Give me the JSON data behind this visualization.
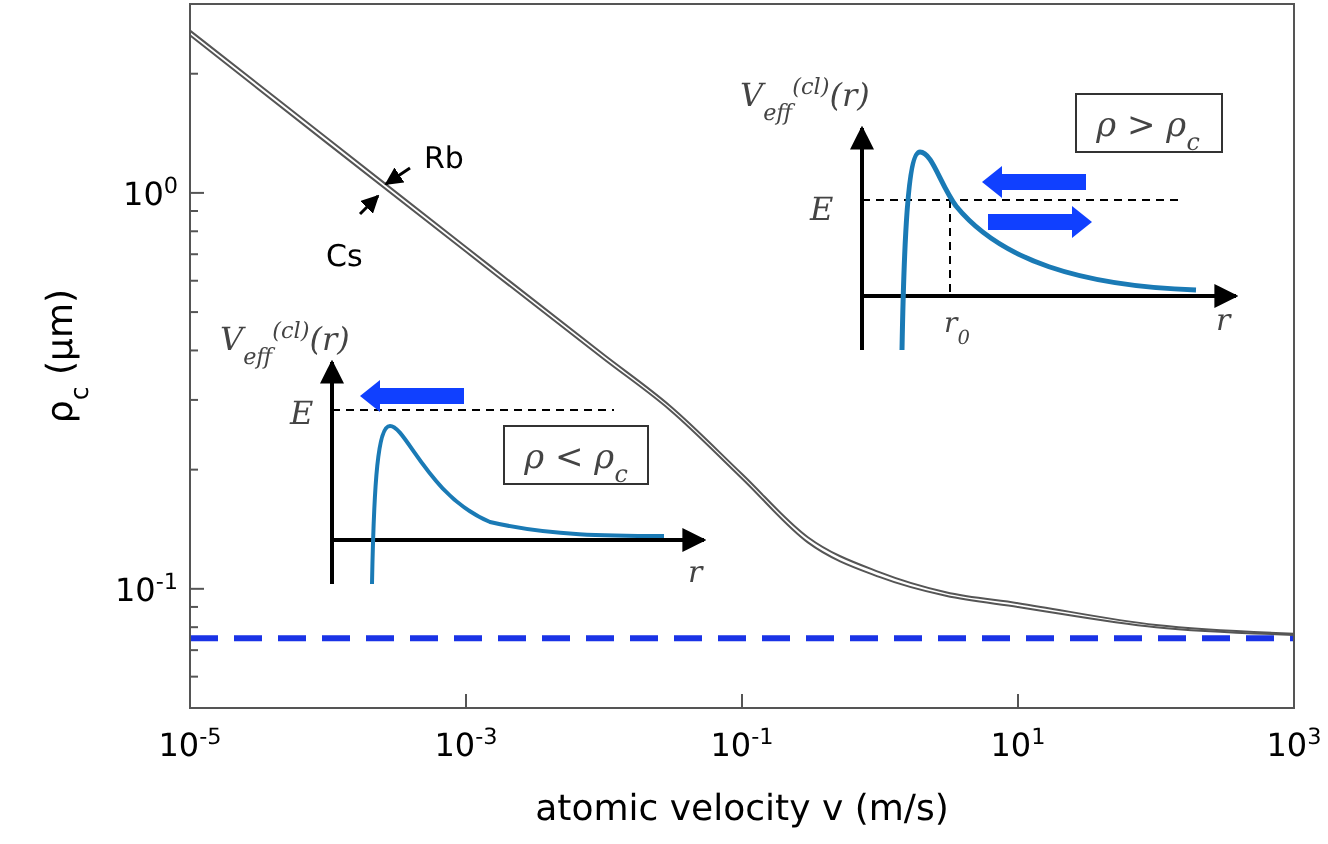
{
  "chart_data": {
    "type": "line",
    "xlabel": "atomic velocity v (m/s)",
    "ylabel": "ρ$_{c}$ (μm)",
    "x": [
      1e-05,
      0.0001,
      0.001,
      0.01,
      0.03,
      0.1,
      0.3,
      1,
      3,
      10,
      100,
      1000
    ],
    "series": [
      {
        "name": "Rb",
        "color": "#555555",
        "values": [
          2.57,
          1.37,
          0.73,
          0.39,
          0.29,
          0.195,
          0.135,
          0.11,
          0.098,
          0.092,
          0.081,
          0.077
        ]
      },
      {
        "name": "Cs",
        "color": "#555555",
        "values": [
          2.5,
          1.33,
          0.71,
          0.38,
          0.283,
          0.19,
          0.131,
          0.107,
          0.096,
          0.09,
          0.08,
          0.0765
        ]
      }
    ],
    "log": "xy",
    "xlim": [
      1e-05,
      1000
    ],
    "ylim": [
      0.05,
      3
    ],
    "xticks": [
      {
        "value": 1e-05,
        "label": "10$^{-5}$"
      },
      {
        "value": 0.001,
        "label": "10$^{-3}$"
      },
      {
        "value": 0.1,
        "label": "10$^{-1}$"
      },
      {
        "value": 10,
        "label": "10$^{1}$"
      },
      {
        "value": 1000,
        "label": "10$^{3}$"
      }
    ],
    "yticks": [
      {
        "value": 0.06,
        "label": null
      },
      {
        "value": 0.07,
        "label": null
      },
      {
        "value": 0.08,
        "label": null
      },
      {
        "value": 0.09,
        "label": null
      },
      {
        "value": 0.1,
        "label": "10$^{-1}$"
      },
      {
        "value": 0.2,
        "label": null
      },
      {
        "value": 0.3,
        "label": null
      },
      {
        "value": 0.4,
        "label": null
      },
      {
        "value": 0.5,
        "label": null
      },
      {
        "value": 0.6,
        "label": null
      },
      {
        "value": 0.7,
        "label": null
      },
      {
        "value": 0.8,
        "label": null
      },
      {
        "value": 0.9,
        "label": null
      },
      {
        "value": 1,
        "label": "10$^{0}$"
      },
      {
        "value": 2,
        "label": null
      }
    ],
    "ref_lines": [
      {
        "axis": "y",
        "value": 0.075,
        "color": "#1a33e6",
        "line_style": "dashed"
      }
    ],
    "grid": false,
    "legend": false,
    "marker": "none",
    "line_style": "solid",
    "annotations": [
      "V$_{eff}$$^{(cl)}$(r)",
      "E",
      "ρ < ρ$_{c}$",
      "r",
      "V$_{eff}$$^{(cl)}$(r)",
      "E",
      "ρ > ρ$_{c}$",
      "r$_{0}$",
      "r"
    ]
  }
}
